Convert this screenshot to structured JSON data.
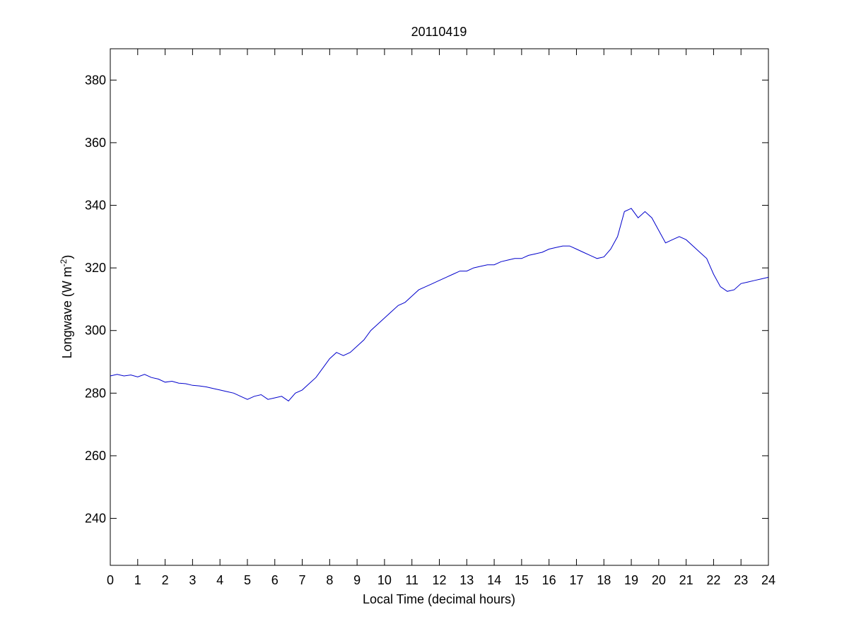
{
  "chart_data": {
    "type": "line",
    "title": "20110419",
    "xlabel": "Local Time (decimal hours)",
    "ylabel_base": "Longwave (W m",
    "ylabel_sup": "-2",
    "ylabel_close": ")",
    "xlim": [
      0,
      24
    ],
    "ylim": [
      225,
      390
    ],
    "x_ticks": [
      0,
      1,
      2,
      3,
      4,
      5,
      6,
      7,
      8,
      9,
      10,
      11,
      12,
      13,
      14,
      15,
      16,
      17,
      18,
      19,
      20,
      21,
      22,
      23,
      24
    ],
    "x_tick_labels": [
      "0",
      "1",
      "2",
      "3",
      "4",
      "5",
      "6",
      "7",
      "8",
      "9",
      "10",
      "11",
      "12",
      "13",
      "14",
      "15",
      "16",
      "17",
      "18",
      "19",
      "20",
      "21",
      "22",
      "23",
      "24"
    ],
    "y_ticks": [
      240,
      260,
      280,
      300,
      320,
      340,
      360,
      380
    ],
    "y_tick_labels": [
      "240",
      "260",
      "280",
      "300",
      "320",
      "340",
      "360",
      "380"
    ],
    "grid": false,
    "line_color": "#0000cc",
    "series": [
      {
        "x": [
          0,
          0.25,
          0.5,
          0.75,
          1,
          1.25,
          1.5,
          1.75,
          2,
          2.25,
          2.5,
          2.75,
          3,
          3.25,
          3.5,
          3.75,
          4,
          4.25,
          4.5,
          4.75,
          5,
          5.25,
          5.5,
          5.75,
          6,
          6.25,
          6.5,
          6.75,
          7,
          7.25,
          7.5,
          7.75,
          8,
          8.25,
          8.5,
          8.75,
          9,
          9.25,
          9.5,
          9.75,
          10,
          10.25,
          10.5,
          10.75,
          11,
          11.25,
          11.5,
          11.75,
          12,
          12.25,
          12.5,
          12.75,
          13,
          13.25,
          13.5,
          13.75,
          14,
          14.25,
          14.5,
          14.75,
          15,
          15.25,
          15.5,
          15.75,
          16,
          16.25,
          16.5,
          16.75,
          17,
          17.25,
          17.5,
          17.75,
          18,
          18.25,
          18.5,
          18.75,
          19,
          19.25,
          19.5,
          19.75,
          20,
          20.25,
          20.5,
          20.75,
          21,
          21.25,
          21.5,
          21.75,
          22,
          22.25,
          22.5,
          22.75,
          23,
          23.25,
          23.5,
          23.75,
          24
        ],
        "y": [
          285.5,
          286,
          285.5,
          285.8,
          285.2,
          286,
          285,
          284.5,
          283.5,
          283.8,
          283.2,
          283,
          282.5,
          282.3,
          282,
          281.5,
          281,
          280.5,
          280,
          279,
          278,
          279,
          279.5,
          278,
          278.5,
          279,
          277.5,
          280,
          281,
          283,
          285,
          288,
          291,
          293,
          292,
          293,
          295,
          297,
          300,
          302,
          304,
          306,
          308,
          309,
          311,
          313,
          314,
          315,
          316,
          317,
          318,
          319,
          319,
          320,
          320.5,
          321,
          321,
          322,
          322.5,
          323,
          323,
          324,
          324.5,
          325,
          326,
          326.5,
          327,
          327,
          326,
          325,
          324,
          323,
          323.5,
          326,
          330,
          338,
          339,
          336,
          338,
          336,
          332,
          328,
          329,
          330,
          329,
          327,
          325,
          323,
          318,
          314,
          312.5,
          313,
          315,
          315.5,
          316,
          316.5,
          317
        ]
      }
    ]
  }
}
